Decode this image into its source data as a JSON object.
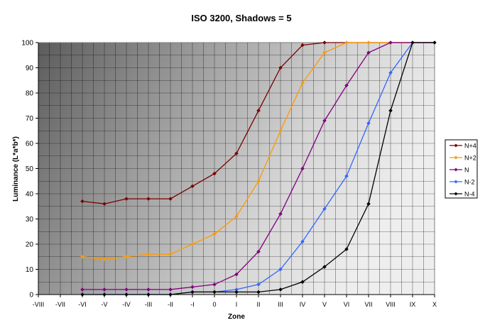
{
  "chart_data": {
    "type": "line",
    "title": "ISO 3200, Shadows = 5",
    "xlabel": "Zone",
    "ylabel": "Luminance (L*a*b*)",
    "categories": [
      "-VIII",
      "-VII",
      "-VI",
      "-V",
      "-IV",
      "-III",
      "-II",
      "-I",
      "0",
      "I",
      "II",
      "III",
      "IV",
      "V",
      "VI",
      "VII",
      "VIII",
      "IX",
      "X"
    ],
    "ylim": [
      0,
      100
    ],
    "yticks": [
      0,
      10,
      20,
      30,
      40,
      50,
      60,
      70,
      80,
      90,
      100
    ],
    "grid": true,
    "legend_position": "right",
    "series": [
      {
        "name": "N+4",
        "color": "#7a0000",
        "x": [
          "-VI",
          "-V",
          "-IV",
          "-III",
          "-II",
          "-I",
          "0",
          "I",
          "II",
          "III",
          "IV",
          "V",
          "VI",
          "VII",
          "VIII",
          "IX",
          "X"
        ],
        "values": [
          37,
          36,
          38,
          38,
          38,
          43,
          48,
          56,
          73,
          90,
          99,
          100,
          100,
          100,
          100,
          100,
          100
        ]
      },
      {
        "name": "N+2",
        "color": "#ff9900",
        "x": [
          "-VI",
          "-V",
          "-IV",
          "-III",
          "-II",
          "-I",
          "0",
          "I",
          "II",
          "III",
          "IV",
          "V",
          "VI",
          "VII",
          "VIII",
          "IX",
          "X"
        ],
        "values": [
          15,
          14,
          15,
          16,
          16,
          20,
          24,
          31,
          45,
          65,
          84,
          96,
          100,
          100,
          100,
          100,
          100
        ]
      },
      {
        "name": "N",
        "color": "#800080",
        "x": [
          "-VI",
          "-V",
          "-IV",
          "-III",
          "-II",
          "-I",
          "0",
          "I",
          "II",
          "III",
          "IV",
          "V",
          "VI",
          "VII",
          "VIII",
          "IX",
          "X"
        ],
        "values": [
          2,
          2,
          2,
          2,
          2,
          3,
          4,
          8,
          17,
          32,
          50,
          69,
          83,
          96,
          100,
          100,
          100
        ]
      },
      {
        "name": "N-2",
        "color": "#3366ff",
        "x": [
          "-VI",
          "-V",
          "-IV",
          "-III",
          "-II",
          "-I",
          "0",
          "I",
          "II",
          "III",
          "IV",
          "V",
          "VI",
          "VII",
          "VIII",
          "IX",
          "X"
        ],
        "values": [
          0,
          0,
          0,
          0,
          0,
          1,
          1,
          2,
          4,
          10,
          21,
          34,
          47,
          68,
          88,
          100,
          100
        ]
      },
      {
        "name": "N-4",
        "color": "#000000",
        "x": [
          "-VI",
          "-V",
          "-IV",
          "-III",
          "-II",
          "-I",
          "0",
          "I",
          "II",
          "III",
          "IV",
          "V",
          "VI",
          "VII",
          "VIII",
          "IX",
          "X"
        ],
        "values": [
          0,
          0,
          0,
          0,
          0,
          1,
          1,
          1,
          1,
          2,
          5,
          11,
          18,
          36,
          73,
          100,
          100
        ]
      }
    ]
  }
}
